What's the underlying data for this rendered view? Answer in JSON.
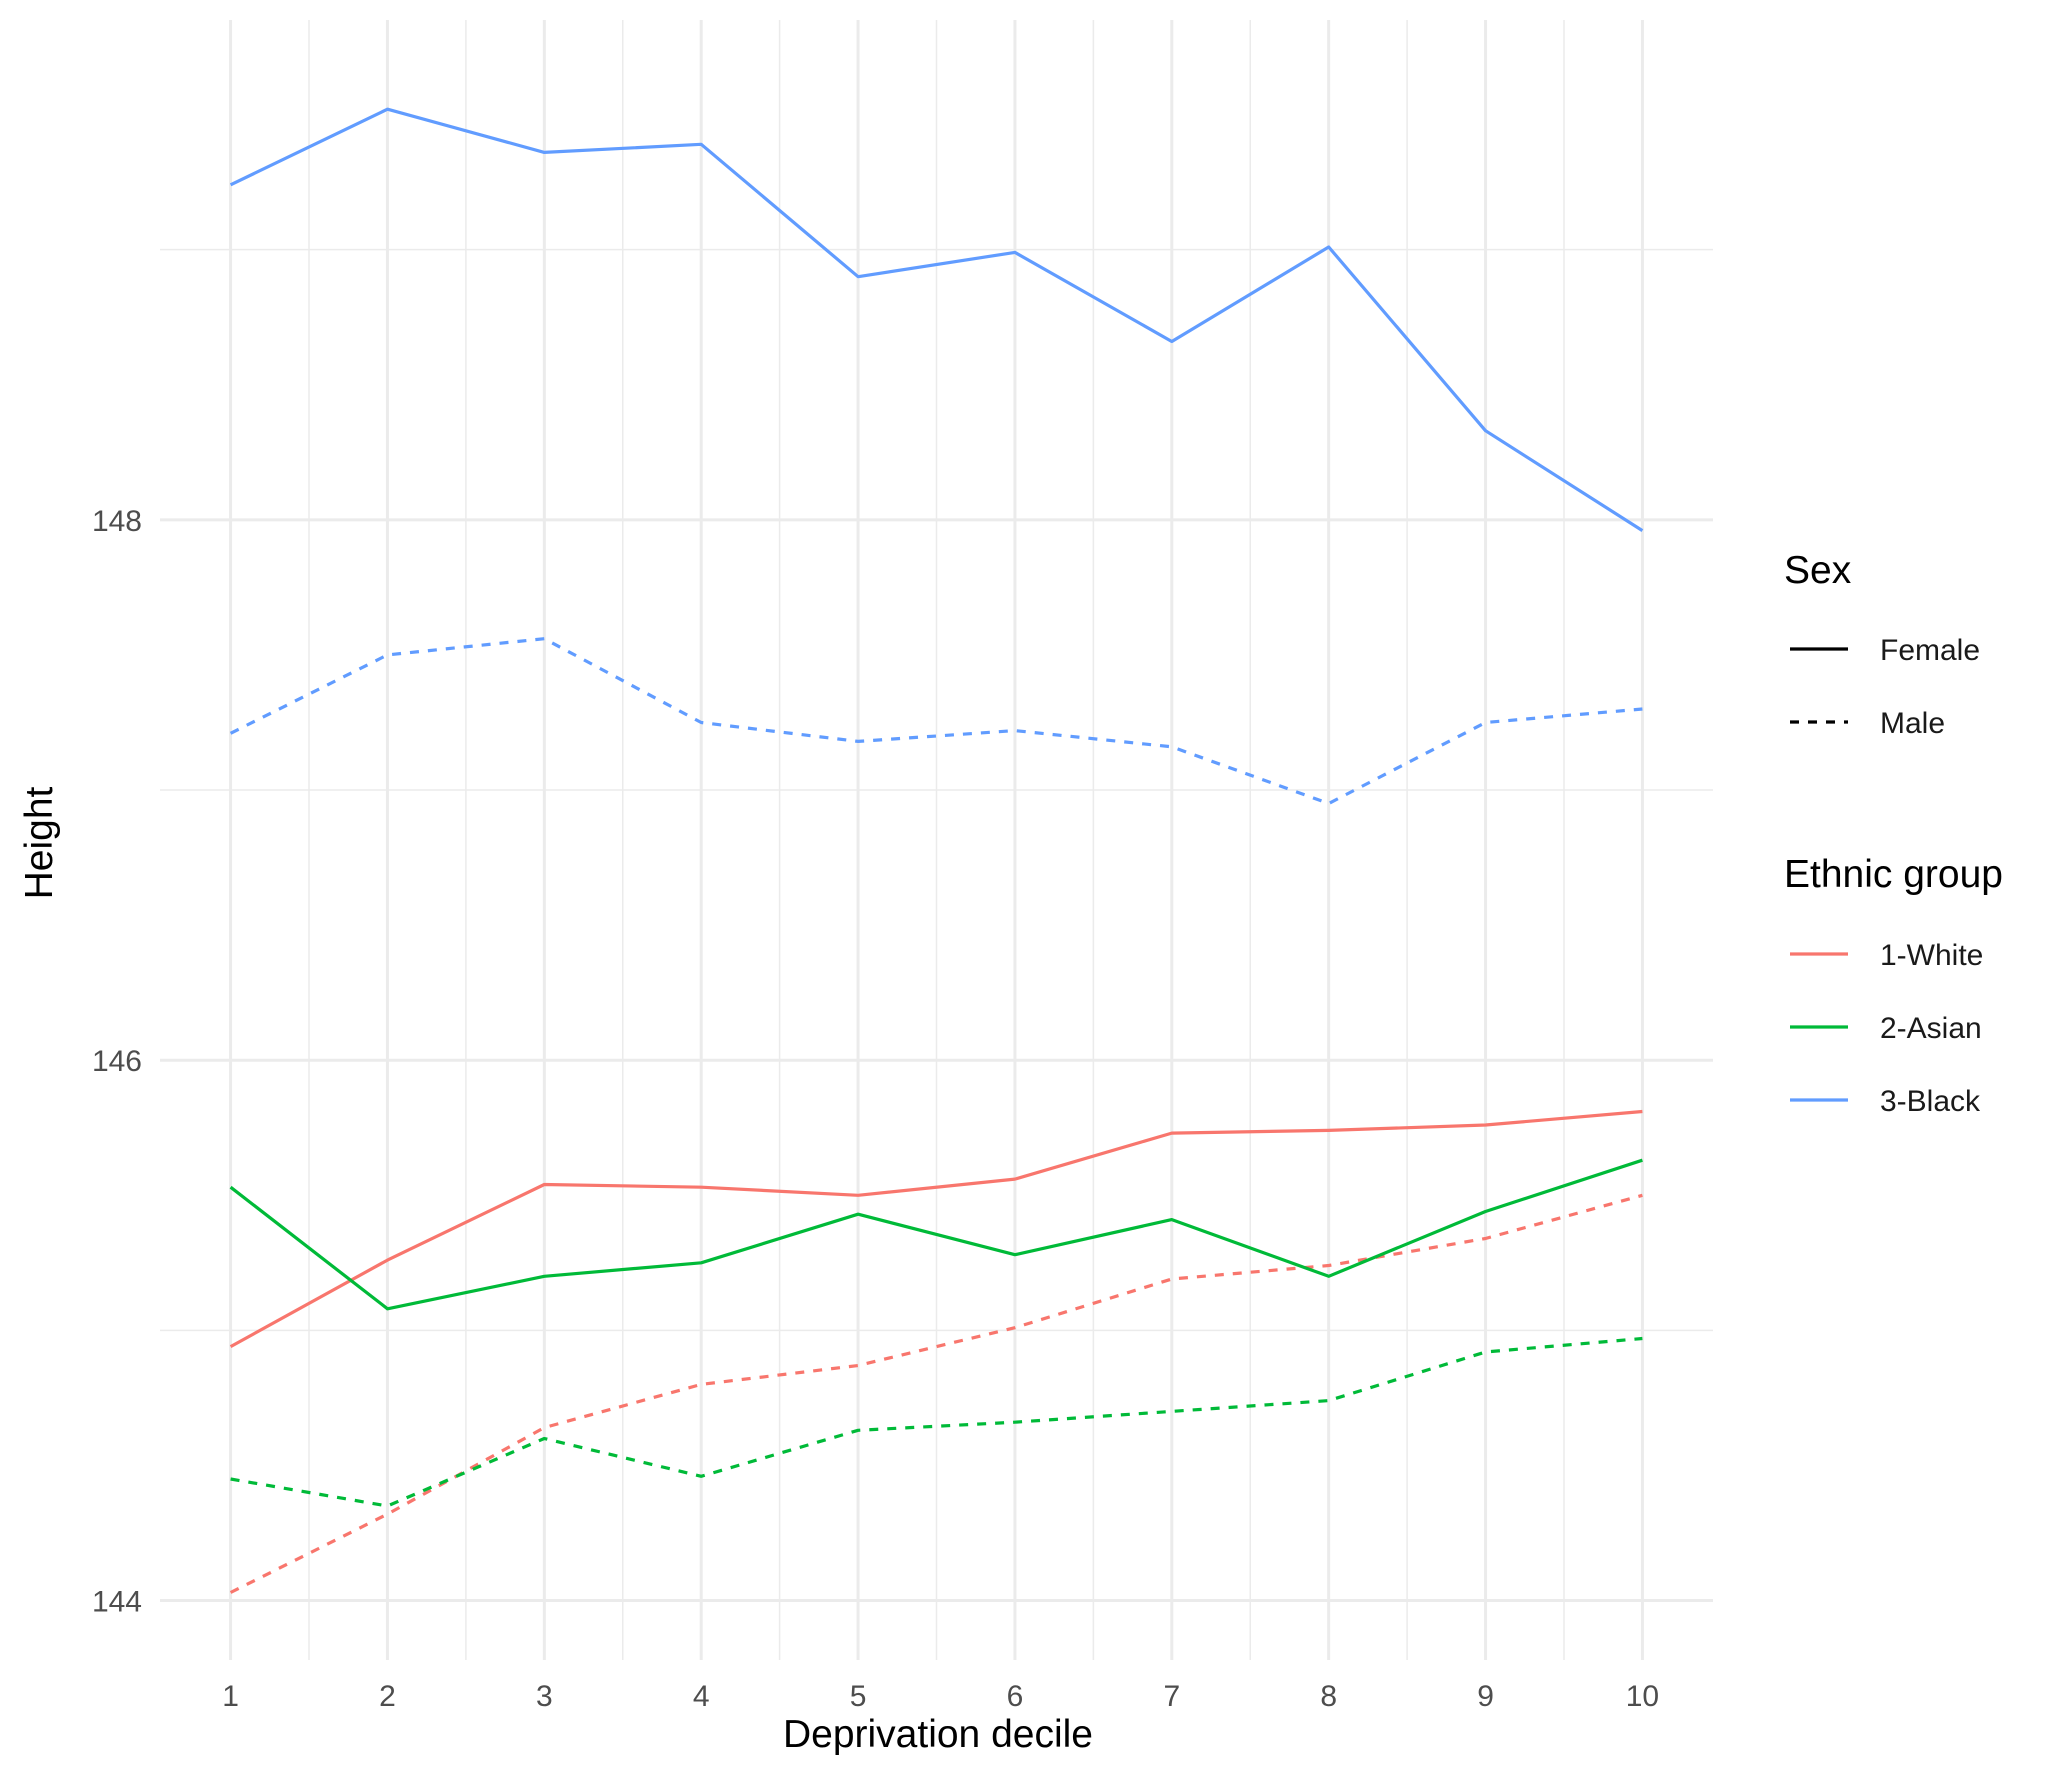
{
  "chart_data": {
    "type": "line",
    "xlabel": "Deprivation decile",
    "ylabel": "Height",
    "x": [
      1,
      2,
      3,
      4,
      5,
      6,
      7,
      8,
      9,
      10
    ],
    "x_ticks": [
      "1",
      "2",
      "3",
      "4",
      "5",
      "6",
      "7",
      "8",
      "9",
      "10"
    ],
    "y_ticks": [
      "144",
      "146",
      "148"
    ],
    "xlim": [
      0.55,
      10.45
    ],
    "ylim": [
      143.78,
      149.85
    ],
    "grid": true,
    "legend_position": "right",
    "legend": {
      "sex_title": "Sex",
      "sex_entries": [
        {
          "label": "Female",
          "linetype": "solid"
        },
        {
          "label": "Male",
          "linetype": "dashed"
        }
      ],
      "group_title": "Ethnic group",
      "group_entries": [
        {
          "label": "1-White",
          "color": "#F8766D"
        },
        {
          "label": "2-Asian",
          "color": "#00BA38"
        },
        {
          "label": "3-Black",
          "color": "#619CFF"
        }
      ]
    },
    "series": [
      {
        "group": "1-White",
        "sex": "Female",
        "color": "#F8766D",
        "linetype": "solid",
        "values": [
          144.94,
          145.26,
          145.54,
          145.53,
          145.5,
          145.56,
          145.73,
          145.74,
          145.76,
          145.81
        ]
      },
      {
        "group": "1-White",
        "sex": "Male",
        "color": "#F8766D",
        "linetype": "dashed",
        "values": [
          144.03,
          144.32,
          144.64,
          144.8,
          144.87,
          145.01,
          145.19,
          145.24,
          145.34,
          145.5
        ]
      },
      {
        "group": "2-Asian",
        "sex": "Female",
        "color": "#00BA38",
        "linetype": "solid",
        "values": [
          145.53,
          145.08,
          145.2,
          145.25,
          145.43,
          145.28,
          145.41,
          145.2,
          145.44,
          145.63
        ]
      },
      {
        "group": "2-Asian",
        "sex": "Male",
        "color": "#00BA38",
        "linetype": "dashed",
        "values": [
          144.45,
          144.35,
          144.6,
          144.46,
          144.63,
          144.66,
          144.7,
          144.74,
          144.92,
          144.97
        ]
      },
      {
        "group": "3-Black",
        "sex": "Female",
        "color": "#619CFF",
        "linetype": "solid",
        "values": [
          149.24,
          149.52,
          149.36,
          149.39,
          148.9,
          148.99,
          148.66,
          149.01,
          148.33,
          147.96
        ]
      },
      {
        "group": "3-Black",
        "sex": "Male",
        "color": "#619CFF",
        "linetype": "dashed",
        "values": [
          147.21,
          147.5,
          147.56,
          147.25,
          147.18,
          147.22,
          147.16,
          146.95,
          147.25,
          147.3
        ]
      }
    ]
  }
}
